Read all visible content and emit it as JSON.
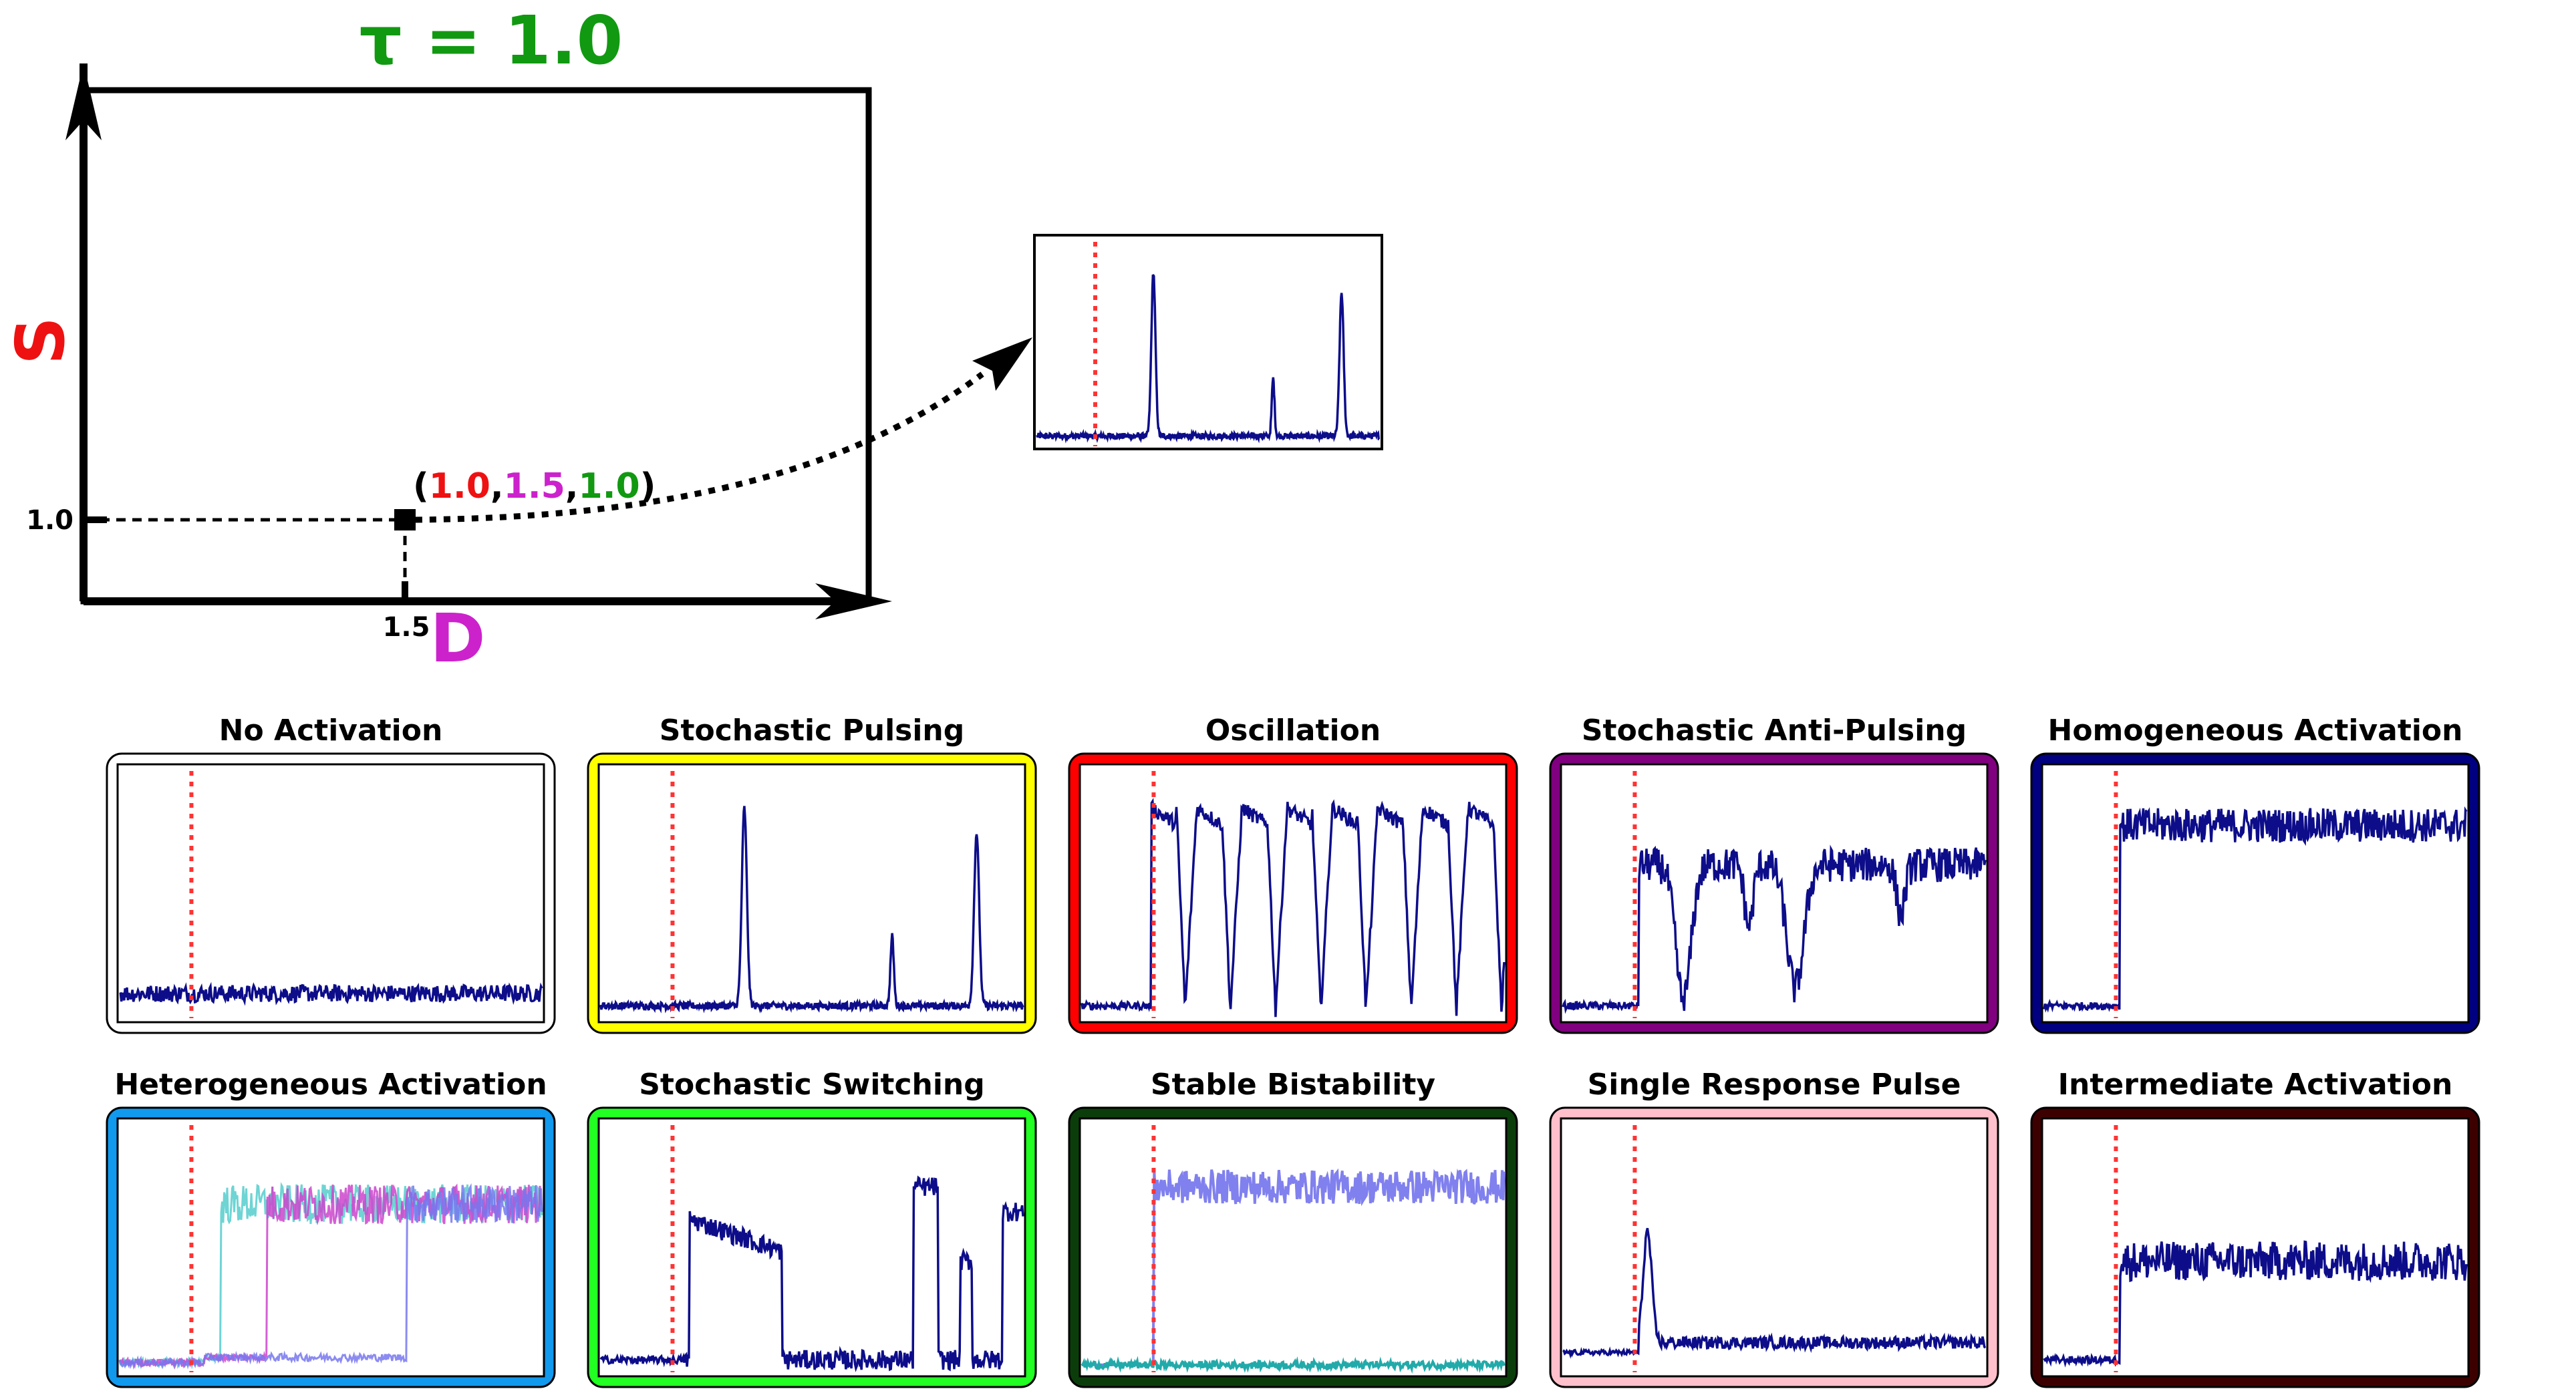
{
  "header": {
    "tau_label": "τ = 1.0"
  },
  "phase_plot": {
    "y_axis_label": "S",
    "x_axis_label": "D",
    "y_tick": "1.0",
    "x_tick": "1.5",
    "point": {
      "open": "(",
      "s": "1.0",
      "comma1": ",",
      "d": "1.5",
      "comma2": ",",
      "tau": "1.0",
      "close": ")"
    }
  },
  "colors": {
    "s": "#ee1111",
    "d": "#cc22cc",
    "tau": "#119911",
    "trace": "#0d0d8a",
    "stim_line": "#ff3333"
  },
  "panels": [
    {
      "title": "No Activation",
      "frame_color": "#ffffff",
      "pattern": "none"
    },
    {
      "title": "Stochastic Pulsing",
      "frame_color": "#ffff00",
      "pattern": "pulsing"
    },
    {
      "title": "Oscillation",
      "frame_color": "#ff0000",
      "pattern": "oscillation"
    },
    {
      "title": "Stochastic Anti-Pulsing",
      "frame_color": "#800080",
      "pattern": "antipulsing"
    },
    {
      "title": "Homogeneous Activation",
      "frame_color": "#000080",
      "pattern": "homogeneous"
    },
    {
      "title": "Heterogeneous Activation",
      "frame_color": "#1199ee",
      "pattern": "heterogeneous"
    },
    {
      "title": "Stochastic Switching",
      "frame_color": "#22ff22",
      "pattern": "switching"
    },
    {
      "title": "Stable Bistability",
      "frame_color": "#0b3d0b",
      "pattern": "bistability"
    },
    {
      "title": "Single Response Pulse",
      "frame_color": "#ffc0cb",
      "pattern": "singlepulse"
    },
    {
      "title": "Intermediate Activation",
      "frame_color": "#3d0000",
      "pattern": "intermediate"
    }
  ],
  "inset": {
    "pattern": "pulsing"
  }
}
